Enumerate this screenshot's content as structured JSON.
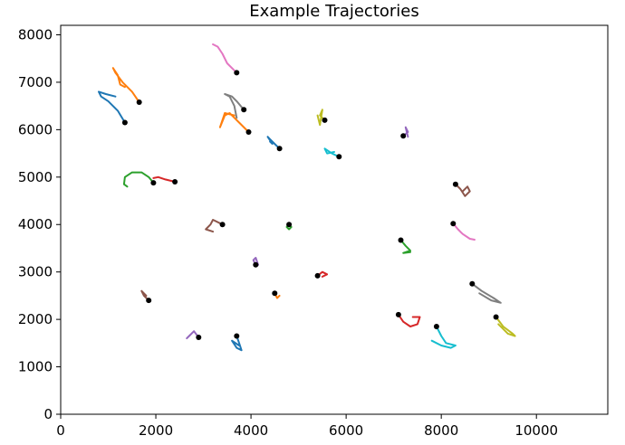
{
  "chart_data": {
    "type": "line",
    "title": "Example Trajectories",
    "xlabel": "",
    "ylabel": "",
    "xlim": [
      0,
      11500
    ],
    "ylim": [
      0,
      8200
    ],
    "x_ticks": [
      0,
      2000,
      4000,
      6000,
      8000,
      10000
    ],
    "y_ticks": [
      0,
      1000,
      2000,
      3000,
      4000,
      5000,
      6000,
      7000,
      8000
    ],
    "grid": false,
    "legend": "none",
    "start_marker_color": "#000000",
    "series": [
      {
        "color": "#1f77b4",
        "points": [
          [
            1350,
            6150
          ],
          [
            1200,
            6400
          ],
          [
            1000,
            6600
          ],
          [
            850,
            6700
          ],
          [
            800,
            6800
          ],
          [
            950,
            6750
          ],
          [
            1150,
            6700
          ]
        ]
      },
      {
        "color": "#ff7f0e",
        "points": [
          [
            1650,
            6580
          ],
          [
            1500,
            6800
          ],
          [
            1300,
            7000
          ],
          [
            1150,
            7200
          ],
          [
            1100,
            7300
          ],
          [
            1200,
            7150
          ],
          [
            1250,
            6950
          ],
          [
            1350,
            6900
          ]
        ]
      },
      {
        "color": "#e377c2",
        "points": [
          [
            3700,
            7200
          ],
          [
            3500,
            7400
          ],
          [
            3400,
            7600
          ],
          [
            3300,
            7750
          ],
          [
            3200,
            7800
          ],
          [
            3300,
            7750
          ]
        ]
      },
      {
        "color": "#7f7f7f",
        "points": [
          [
            3850,
            6420
          ],
          [
            3700,
            6600
          ],
          [
            3600,
            6700
          ],
          [
            3450,
            6750
          ],
          [
            3550,
            6700
          ],
          [
            3650,
            6500
          ],
          [
            3700,
            6250
          ]
        ]
      },
      {
        "color": "#ff7f0e",
        "points": [
          [
            3950,
            5950
          ],
          [
            3750,
            6150
          ],
          [
            3550,
            6350
          ],
          [
            3450,
            6300
          ],
          [
            3350,
            6050
          ],
          [
            3450,
            6350
          ],
          [
            3650,
            6300
          ]
        ]
      },
      {
        "color": "#bcbd22",
        "points": [
          [
            5550,
            6200
          ],
          [
            5450,
            6300
          ],
          [
            5500,
            6420
          ],
          [
            5450,
            6100
          ],
          [
            5400,
            6300
          ]
        ]
      },
      {
        "color": "#1f77b4",
        "points": [
          [
            4600,
            5600
          ],
          [
            4500,
            5700
          ],
          [
            4400,
            5800
          ],
          [
            4350,
            5850
          ],
          [
            4450,
            5700
          ],
          [
            4400,
            5750
          ]
        ]
      },
      {
        "color": "#17becf",
        "points": [
          [
            5850,
            5430
          ],
          [
            5700,
            5500
          ],
          [
            5550,
            5600
          ],
          [
            5600,
            5500
          ],
          [
            5750,
            5530
          ]
        ]
      },
      {
        "color": "#9467bd",
        "points": [
          [
            7200,
            5870
          ],
          [
            7300,
            5950
          ],
          [
            7250,
            6050
          ],
          [
            7300,
            5850
          ]
        ]
      },
      {
        "color": "#2ca02c",
        "points": [
          [
            1950,
            4880
          ],
          [
            1850,
            5000
          ],
          [
            1700,
            5100
          ],
          [
            1500,
            5100
          ],
          [
            1350,
            5000
          ],
          [
            1330,
            4850
          ],
          [
            1400,
            4800
          ]
        ]
      },
      {
        "color": "#d62728",
        "points": [
          [
            2400,
            4900
          ],
          [
            2200,
            4950
          ],
          [
            2050,
            5000
          ],
          [
            1950,
            4980
          ]
        ]
      },
      {
        "color": "#8c564b",
        "points": [
          [
            8300,
            4850
          ],
          [
            8400,
            4750
          ],
          [
            8500,
            4600
          ],
          [
            8600,
            4700
          ],
          [
            8550,
            4800
          ],
          [
            8450,
            4700
          ]
        ]
      },
      {
        "color": "#8c564b",
        "points": [
          [
            3400,
            4000
          ],
          [
            3200,
            4100
          ],
          [
            3150,
            4000
          ],
          [
            3050,
            3900
          ],
          [
            3200,
            3850
          ]
        ]
      },
      {
        "color": "#2ca02c",
        "points": [
          [
            4800,
            4000
          ],
          [
            4750,
            3950
          ],
          [
            4800,
            3900
          ],
          [
            4850,
            3950
          ]
        ]
      },
      {
        "color": "#e377c2",
        "points": [
          [
            8250,
            4020
          ],
          [
            8350,
            3900
          ],
          [
            8450,
            3800
          ],
          [
            8600,
            3700
          ],
          [
            8700,
            3680
          ]
        ]
      },
      {
        "color": "#2ca02c",
        "points": [
          [
            7150,
            3670
          ],
          [
            7250,
            3550
          ],
          [
            7350,
            3450
          ],
          [
            7200,
            3400
          ],
          [
            7350,
            3420
          ]
        ]
      },
      {
        "color": "#9467bd",
        "points": [
          [
            4100,
            3150
          ],
          [
            4050,
            3250
          ],
          [
            4100,
            3300
          ],
          [
            4150,
            3150
          ]
        ]
      },
      {
        "color": "#d62728",
        "points": [
          [
            5400,
            2920
          ],
          [
            5500,
            3000
          ],
          [
            5600,
            2950
          ],
          [
            5500,
            2900
          ]
        ]
      },
      {
        "color": "#7f7f7f",
        "points": [
          [
            8650,
            2750
          ],
          [
            8850,
            2600
          ],
          [
            9100,
            2450
          ],
          [
            9250,
            2350
          ],
          [
            9050,
            2400
          ],
          [
            8800,
            2550
          ]
        ]
      },
      {
        "color": "#8c564b",
        "points": [
          [
            1850,
            2400
          ],
          [
            1750,
            2500
          ],
          [
            1700,
            2600
          ],
          [
            1800,
            2500
          ]
        ]
      },
      {
        "color": "#ff7f0e",
        "points": [
          [
            4500,
            2550
          ],
          [
            4550,
            2450
          ],
          [
            4600,
            2500
          ]
        ]
      },
      {
        "color": "#d62728",
        "points": [
          [
            7100,
            2100
          ],
          [
            7200,
            1950
          ],
          [
            7350,
            1850
          ],
          [
            7500,
            1900
          ],
          [
            7550,
            2050
          ],
          [
            7400,
            2050
          ]
        ]
      },
      {
        "color": "#17becf",
        "points": [
          [
            7900,
            1850
          ],
          [
            8000,
            1650
          ],
          [
            8100,
            1500
          ],
          [
            8300,
            1450
          ],
          [
            8200,
            1400
          ],
          [
            8000,
            1450
          ],
          [
            7800,
            1550
          ]
        ]
      },
      {
        "color": "#bcbd22",
        "points": [
          [
            9150,
            2050
          ],
          [
            9300,
            1850
          ],
          [
            9500,
            1700
          ],
          [
            9550,
            1650
          ],
          [
            9400,
            1700
          ],
          [
            9200,
            1900
          ]
        ]
      },
      {
        "color": "#1f77b4",
        "points": [
          [
            3700,
            1650
          ],
          [
            3750,
            1500
          ],
          [
            3800,
            1350
          ],
          [
            3700,
            1400
          ],
          [
            3600,
            1550
          ],
          [
            3750,
            1450
          ]
        ]
      },
      {
        "color": "#9467bd",
        "points": [
          [
            2900,
            1620
          ],
          [
            2800,
            1750
          ],
          [
            2700,
            1650
          ],
          [
            2650,
            1600
          ]
        ]
      }
    ]
  }
}
